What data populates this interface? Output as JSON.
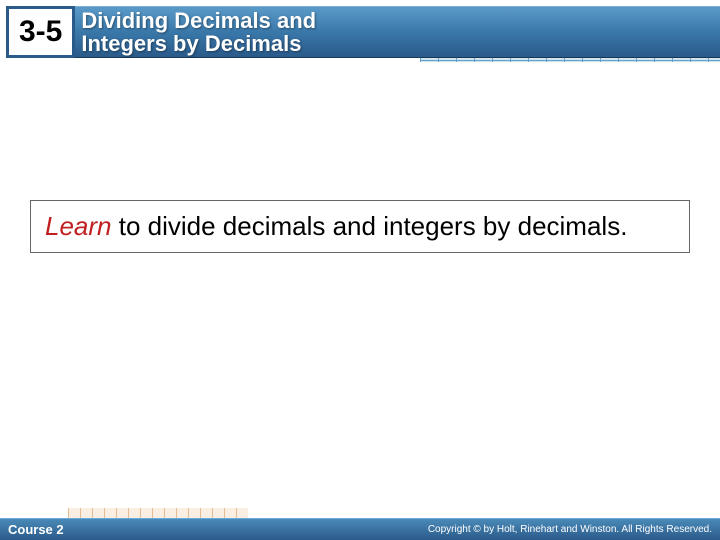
{
  "header": {
    "section_number": "3-5",
    "title_line1": "Dividing Decimals and",
    "title_line2": "Integers by Decimals",
    "badge_bg": "#ffffff",
    "badge_border": "#2a5a8a",
    "bar_gradient_top": "#5a9ac8",
    "bar_gradient_bottom": "#2a5a8a",
    "grid_line_color": "#4a90c2",
    "grid_bg_color": "#c8e0ee"
  },
  "content": {
    "learn_label": "Learn",
    "learn_body": " to divide decimals and integers by decimals.",
    "learn_label_color": "#c02020",
    "body_color": "#000000",
    "box_border": "#666666",
    "fontsize": 26
  },
  "footer": {
    "course": "Course 2",
    "copyright": "Copyright © by Holt, Rinehart and Winston. All Rights Reserved.",
    "bg_top": "#4a8ab8",
    "bg_bottom": "#2a5a8a",
    "text_color": "#ffffff"
  }
}
